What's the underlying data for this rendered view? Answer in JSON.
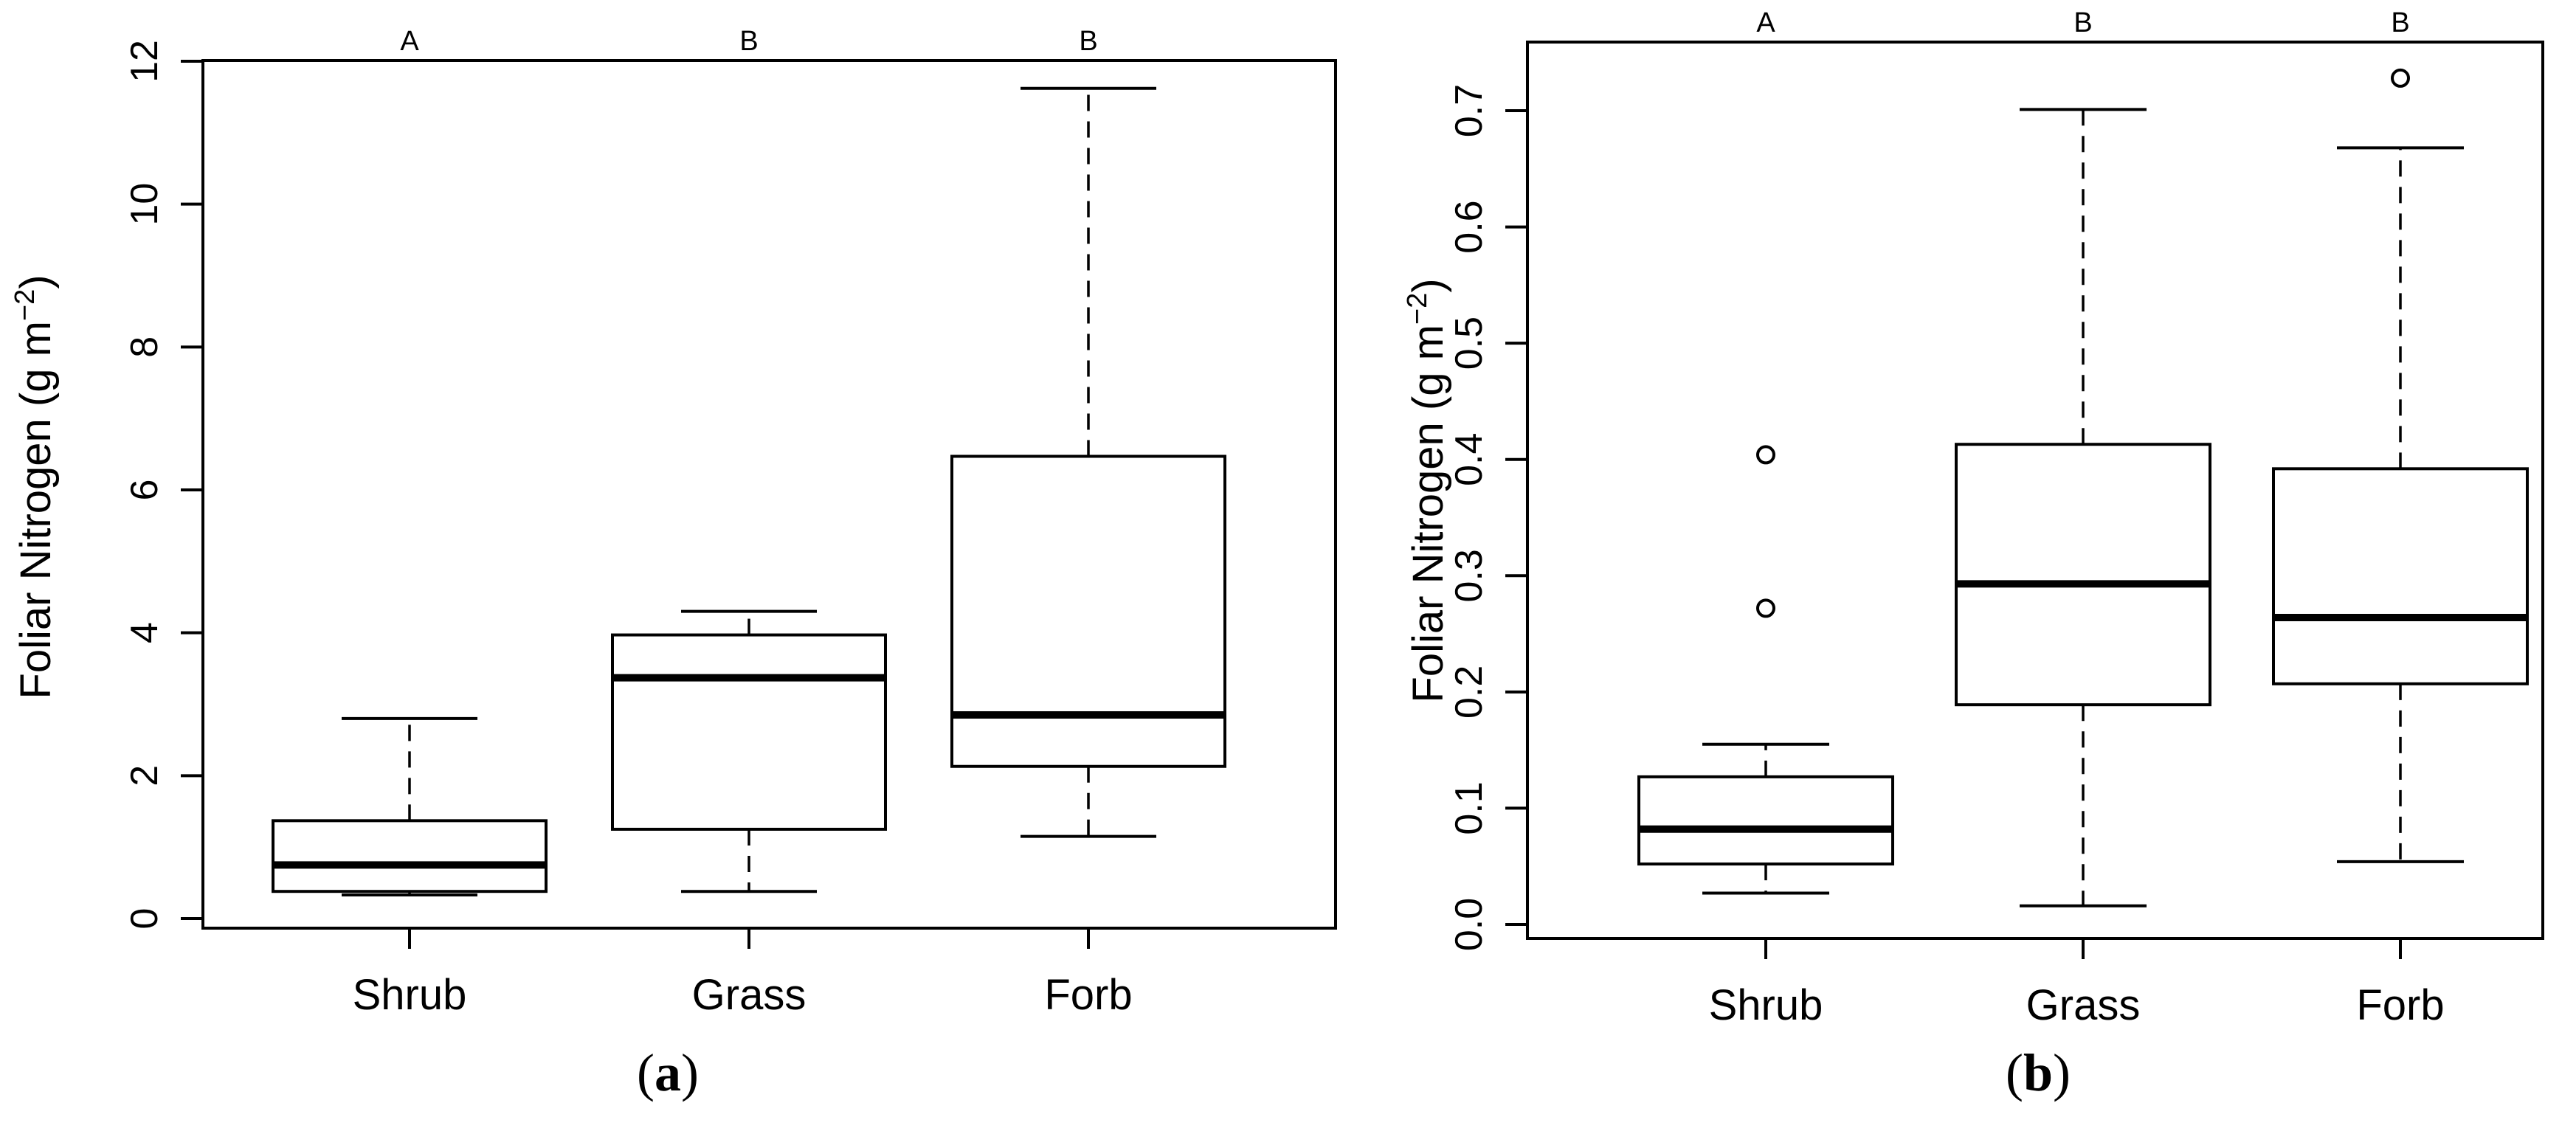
{
  "chart_data": [
    {
      "type": "box",
      "panel_label": "a",
      "ylabel": "Foliar Nitrogen (g m",
      "ylabel_superscript": "−2",
      "ylabel_close": ")",
      "ylim": [
        0,
        12
      ],
      "yticks": [
        0,
        2,
        4,
        6,
        8,
        10,
        12
      ],
      "categories": [
        "Shrub",
        "Grass",
        "Forb"
      ],
      "significance_letters": [
        "A",
        "B",
        "B"
      ],
      "boxes": [
        {
          "category": "Shrub",
          "whisker_low": 0.33,
          "q1": 0.38,
          "median": 0.75,
          "q3": 1.37,
          "whisker_high": 2.8,
          "outliers": []
        },
        {
          "category": "Grass",
          "whisker_low": 0.38,
          "q1": 1.25,
          "median": 3.37,
          "q3": 3.97,
          "whisker_high": 4.3,
          "outliers": []
        },
        {
          "category": "Forb",
          "whisker_low": 1.15,
          "q1": 2.13,
          "median": 2.85,
          "q3": 6.47,
          "whisker_high": 11.62,
          "outliers": []
        }
      ]
    },
    {
      "type": "box",
      "panel_label": "b",
      "ylabel": "Foliar Nitrogen (g m",
      "ylabel_superscript": "−2",
      "ylabel_close": ")",
      "ylim": [
        0,
        0.7
      ],
      "yticks": [
        "0.0",
        "0.1",
        "0.2",
        "0.3",
        "0.4",
        "0.5",
        "0.6",
        "0.7"
      ],
      "categories": [
        "Shrub",
        "Grass",
        "Forb"
      ],
      "significance_letters": [
        "A",
        "B",
        "B"
      ],
      "boxes": [
        {
          "category": "Shrub",
          "whisker_low": 0.027,
          "q1": 0.052,
          "median": 0.082,
          "q3": 0.127,
          "whisker_high": 0.155,
          "outliers": [
            0.272,
            0.404
          ]
        },
        {
          "category": "Grass",
          "whisker_low": 0.016,
          "q1": 0.189,
          "median": 0.293,
          "q3": 0.413,
          "whisker_high": 0.701,
          "outliers": []
        },
        {
          "category": "Forb",
          "whisker_low": 0.054,
          "q1": 0.207,
          "median": 0.264,
          "q3": 0.392,
          "whisker_high": 0.668,
          "outliers": [
            0.728
          ]
        }
      ]
    }
  ]
}
